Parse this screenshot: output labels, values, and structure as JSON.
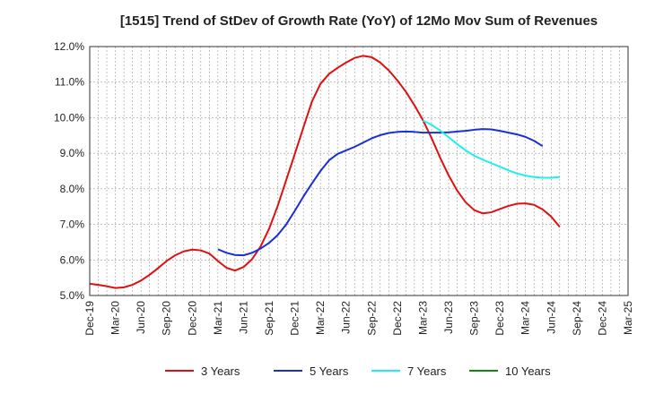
{
  "chart_data": {
    "type": "line",
    "title": "[1515]  Trend of StDev of Growth Rate (YoY) of 12Mo Mov Sum of Revenues",
    "xlabel": "",
    "ylabel": "",
    "ylim": [
      5.0,
      12.0
    ],
    "y_ticks": [
      "5.0%",
      "6.0%",
      "7.0%",
      "8.0%",
      "9.0%",
      "10.0%",
      "11.0%",
      "12.0%"
    ],
    "x_ticks": [
      "Dec-19",
      "Mar-20",
      "Jun-20",
      "Sep-20",
      "Dec-20",
      "Mar-21",
      "Jun-21",
      "Sep-21",
      "Dec-21",
      "Mar-22",
      "Jun-22",
      "Sep-22",
      "Dec-22",
      "Mar-23",
      "Jun-23",
      "Sep-23",
      "Dec-23",
      "Mar-24",
      "Jun-24",
      "Sep-24",
      "Dec-24",
      "Mar-25"
    ],
    "grid": true,
    "legend_position": "bottom",
    "series": [
      {
        "name": "3 Years",
        "color": "#dd1111",
        "start_index": 0,
        "values": [
          5.33,
          5.3,
          5.26,
          5.21,
          5.23,
          5.3,
          5.42,
          5.58,
          5.77,
          5.97,
          6.13,
          6.24,
          6.29,
          6.27,
          6.18,
          5.97,
          5.78,
          5.7,
          5.8,
          6.02,
          6.38,
          6.88,
          7.52,
          8.25,
          8.98,
          9.72,
          10.45,
          10.95,
          11.23,
          11.4,
          11.55,
          11.68,
          11.74,
          11.7,
          11.55,
          11.33,
          11.05,
          10.73,
          10.35,
          9.93,
          9.43,
          8.88,
          8.38,
          7.95,
          7.62,
          7.4,
          7.31,
          7.34,
          7.43,
          7.52,
          7.58,
          7.59,
          7.55,
          7.42,
          7.22,
          6.93
        ]
      },
      {
        "name": "5 Years",
        "color": "#1a2fd6",
        "start_index": 15,
        "values": [
          6.3,
          6.2,
          6.14,
          6.13,
          6.2,
          6.32,
          6.48,
          6.7,
          7.0,
          7.38,
          7.78,
          8.15,
          8.5,
          8.8,
          8.98,
          9.08,
          9.18,
          9.3,
          9.42,
          9.51,
          9.57,
          9.6,
          9.61,
          9.6,
          9.58,
          9.58,
          9.58,
          9.59,
          9.61,
          9.63,
          9.66,
          9.68,
          9.67,
          9.63,
          9.58,
          9.53,
          9.46,
          9.35,
          9.2
        ]
      },
      {
        "name": "7 Years",
        "color": "#22eeee",
        "start_index": 39,
        "values": [
          9.92,
          9.8,
          9.64,
          9.45,
          9.26,
          9.08,
          8.93,
          8.82,
          8.72,
          8.62,
          8.52,
          8.43,
          8.37,
          8.33,
          8.31,
          8.31,
          8.33
        ]
      },
      {
        "name": "10 Years",
        "color": "#118811",
        "start_index": 0,
        "values": []
      }
    ]
  }
}
